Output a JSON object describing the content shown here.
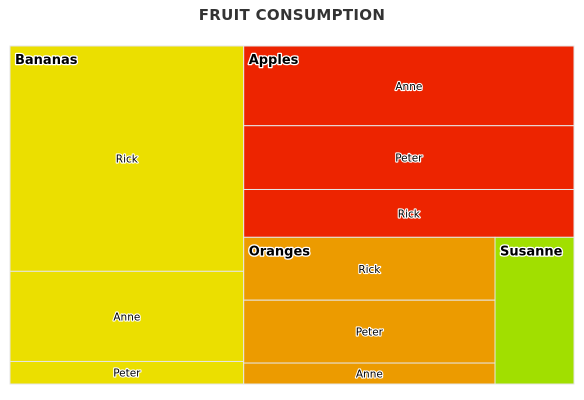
{
  "chart_data": {
    "type": "treemap",
    "title": "FRUIT CONSUMPTION",
    "groups": [
      {
        "name": "Bananas",
        "color": "#ebdf00",
        "items": [
          {
            "name": "Rick",
            "value": 10
          },
          {
            "name": "Anne",
            "value": 4
          },
          {
            "name": "Peter",
            "value": 1
          }
        ]
      },
      {
        "name": "Apples",
        "color": "#ed2400",
        "items": [
          {
            "name": "Anne",
            "value": 5
          },
          {
            "name": "Peter",
            "value": 4
          },
          {
            "name": "Rick",
            "value": 3
          }
        ]
      },
      {
        "name": "Oranges",
        "color": "#ec9b00",
        "items": [
          {
            "name": "Rick",
            "value": 3
          },
          {
            "name": "Peter",
            "value": 3
          },
          {
            "name": "Anne",
            "value": 1
          }
        ]
      },
      {
        "name": "Susanne",
        "color": "#a1df00",
        "items": [
          {
            "name": "Susanne",
            "value": 2.2
          }
        ]
      }
    ]
  }
}
